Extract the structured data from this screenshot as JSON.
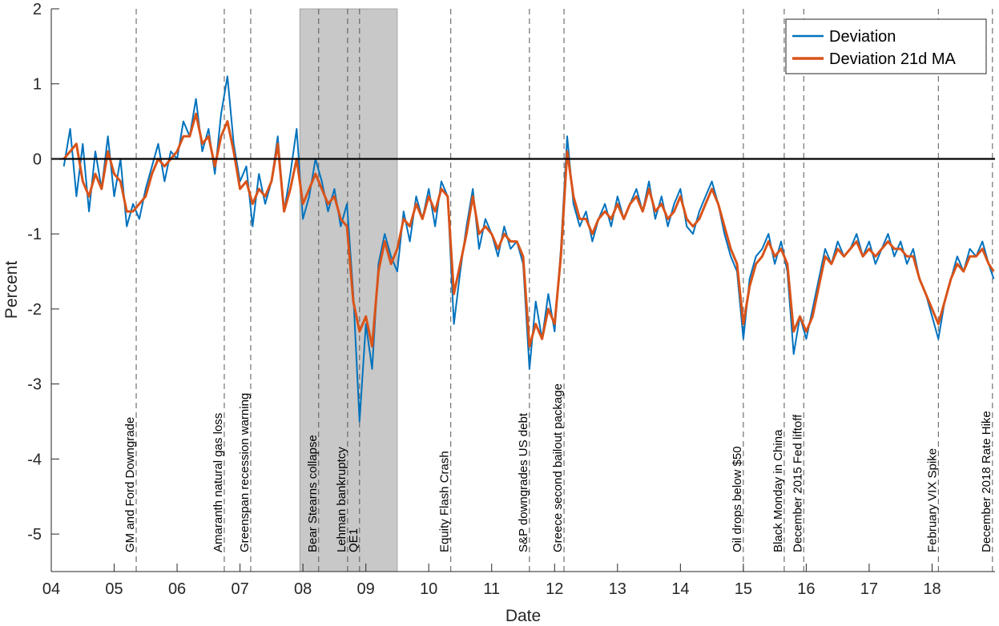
{
  "chart_data": {
    "type": "line",
    "title": "",
    "xlabel": "Date",
    "ylabel": "Percent",
    "xlim": [
      2004.0,
      2019.0
    ],
    "ylim": [
      -5.5,
      2
    ],
    "x_ticks": [
      2004,
      2005,
      2006,
      2007,
      2008,
      2009,
      2010,
      2011,
      2012,
      2013,
      2014,
      2015,
      2016,
      2017,
      2018
    ],
    "x_tick_labels": [
      "04",
      "05",
      "06",
      "07",
      "08",
      "09",
      "10",
      "11",
      "12",
      "13",
      "14",
      "15",
      "16",
      "17",
      "18"
    ],
    "y_ticks": [
      2,
      1,
      0,
      -1,
      -2,
      -3,
      -4,
      -5
    ],
    "y_tick_labels": [
      "2",
      "1",
      "0",
      "-1",
      "-2",
      "-3",
      "-4",
      "-5"
    ],
    "reference_line": 0,
    "shaded_period": [
      2007.95,
      2009.5
    ],
    "legend_position": "top-right",
    "colors": {
      "deviation": "#0072BD",
      "ma": "#D95319",
      "zero_line": "#000000",
      "shade": "#C8C8C8"
    },
    "events": [
      {
        "x": 2005.35,
        "label": "GM and Ford Downgrade"
      },
      {
        "x": 2006.75,
        "label": "Amaranth natural gas loss"
      },
      {
        "x": 2007.17,
        "label": "Greenspan recession warning"
      },
      {
        "x": 2008.25,
        "label": "Bear Stearns collapse"
      },
      {
        "x": 2008.71,
        "label": "Lehman bankruptcy"
      },
      {
        "x": 2008.9,
        "label": "QE1"
      },
      {
        "x": 2010.35,
        "label": "Equity Flash Crash"
      },
      {
        "x": 2011.6,
        "label": "S&P downgrades US debt"
      },
      {
        "x": 2012.15,
        "label": "Greece second bailout package"
      },
      {
        "x": 2015.0,
        "label": "Oil drops below $50"
      },
      {
        "x": 2015.65,
        "label": "Black Monday in China"
      },
      {
        "x": 2015.96,
        "label": "December 2015 Fed liftoff"
      },
      {
        "x": 2018.1,
        "label": "February VIX Spike"
      },
      {
        "x": 2018.96,
        "label": "December 2018 Rate Hike"
      }
    ],
    "series": [
      {
        "name": "Deviation",
        "x": [
          2004.2,
          2004.3,
          2004.4,
          2004.5,
          2004.6,
          2004.7,
          2004.8,
          2004.9,
          2005.0,
          2005.1,
          2005.2,
          2005.3,
          2005.4,
          2005.5,
          2005.6,
          2005.7,
          2005.8,
          2005.9,
          2006.0,
          2006.1,
          2006.2,
          2006.3,
          2006.4,
          2006.5,
          2006.6,
          2006.7,
          2006.8,
          2006.9,
          2007.0,
          2007.1,
          2007.2,
          2007.3,
          2007.4,
          2007.5,
          2007.6,
          2007.7,
          2007.8,
          2007.9,
          2008.0,
          2008.1,
          2008.2,
          2008.3,
          2008.4,
          2008.5,
          2008.6,
          2008.7,
          2008.8,
          2008.9,
          2009.0,
          2009.1,
          2009.2,
          2009.3,
          2009.4,
          2009.5,
          2009.6,
          2009.7,
          2009.8,
          2009.9,
          2010.0,
          2010.1,
          2010.2,
          2010.3,
          2010.4,
          2010.5,
          2010.6,
          2010.7,
          2010.8,
          2010.9,
          2011.0,
          2011.1,
          2011.2,
          2011.3,
          2011.4,
          2011.5,
          2011.6,
          2011.7,
          2011.8,
          2011.9,
          2012.0,
          2012.1,
          2012.2,
          2012.3,
          2012.4,
          2012.5,
          2012.6,
          2012.7,
          2012.8,
          2012.9,
          2013.0,
          2013.1,
          2013.2,
          2013.3,
          2013.4,
          2013.5,
          2013.6,
          2013.7,
          2013.8,
          2013.9,
          2014.0,
          2014.1,
          2014.2,
          2014.3,
          2014.4,
          2014.5,
          2014.6,
          2014.7,
          2014.8,
          2014.9,
          2015.0,
          2015.1,
          2015.2,
          2015.3,
          2015.4,
          2015.5,
          2015.6,
          2015.7,
          2015.8,
          2015.9,
          2016.0,
          2016.1,
          2016.2,
          2016.3,
          2016.4,
          2016.5,
          2016.6,
          2016.7,
          2016.8,
          2016.9,
          2017.0,
          2017.1,
          2017.2,
          2017.3,
          2017.4,
          2017.5,
          2017.6,
          2017.7,
          2017.8,
          2017.9,
          2018.0,
          2018.1,
          2018.2,
          2018.3,
          2018.4,
          2018.5,
          2018.6,
          2018.7,
          2018.8,
          2018.9,
          2018.98
        ],
        "y": [
          -0.1,
          0.4,
          -0.5,
          0.2,
          -0.7,
          0.1,
          -0.4,
          0.3,
          -0.5,
          0.0,
          -0.9,
          -0.6,
          -0.8,
          -0.4,
          -0.1,
          0.2,
          -0.3,
          0.1,
          0.0,
          0.5,
          0.3,
          0.8,
          0.1,
          0.4,
          -0.2,
          0.6,
          1.1,
          0.2,
          -0.3,
          -0.1,
          -0.9,
          -0.2,
          -0.6,
          -0.3,
          0.3,
          -0.7,
          -0.2,
          0.4,
          -0.8,
          -0.5,
          0.0,
          -0.3,
          -0.7,
          -0.4,
          -0.9,
          -0.6,
          -1.8,
          -3.5,
          -2.2,
          -2.8,
          -1.4,
          -1.0,
          -1.3,
          -1.5,
          -0.7,
          -1.1,
          -0.5,
          -0.8,
          -0.4,
          -0.9,
          -0.3,
          -0.5,
          -2.2,
          -1.5,
          -0.9,
          -0.4,
          -1.2,
          -0.8,
          -1.0,
          -1.3,
          -0.9,
          -1.2,
          -1.1,
          -1.4,
          -2.8,
          -1.9,
          -2.4,
          -1.8,
          -2.3,
          -1.2,
          0.3,
          -0.6,
          -0.9,
          -0.7,
          -1.1,
          -0.8,
          -0.6,
          -0.9,
          -0.5,
          -0.8,
          -0.6,
          -0.4,
          -0.7,
          -0.3,
          -0.8,
          -0.5,
          -0.9,
          -0.6,
          -0.4,
          -0.9,
          -1.0,
          -0.7,
          -0.5,
          -0.3,
          -0.6,
          -1.0,
          -1.3,
          -1.5,
          -2.4,
          -1.6,
          -1.3,
          -1.2,
          -1.0,
          -1.4,
          -1.1,
          -1.5,
          -2.6,
          -2.1,
          -2.4,
          -2.0,
          -1.6,
          -1.2,
          -1.4,
          -1.1,
          -1.3,
          -1.2,
          -1.0,
          -1.3,
          -1.1,
          -1.4,
          -1.2,
          -1.0,
          -1.3,
          -1.1,
          -1.4,
          -1.2,
          -1.6,
          -1.8,
          -2.1,
          -2.4,
          -1.9,
          -1.6,
          -1.3,
          -1.5,
          -1.2,
          -1.3,
          -1.1,
          -1.4,
          -1.6
        ]
      },
      {
        "name": "Deviation 21d MA",
        "x": [
          2004.2,
          2004.3,
          2004.4,
          2004.5,
          2004.6,
          2004.7,
          2004.8,
          2004.9,
          2005.0,
          2005.1,
          2005.2,
          2005.3,
          2005.4,
          2005.5,
          2005.6,
          2005.7,
          2005.8,
          2005.9,
          2006.0,
          2006.1,
          2006.2,
          2006.3,
          2006.4,
          2006.5,
          2006.6,
          2006.7,
          2006.8,
          2006.9,
          2007.0,
          2007.1,
          2007.2,
          2007.3,
          2007.4,
          2007.5,
          2007.6,
          2007.7,
          2007.8,
          2007.9,
          2008.0,
          2008.1,
          2008.2,
          2008.3,
          2008.4,
          2008.5,
          2008.6,
          2008.7,
          2008.8,
          2008.9,
          2009.0,
          2009.1,
          2009.2,
          2009.3,
          2009.4,
          2009.5,
          2009.6,
          2009.7,
          2009.8,
          2009.9,
          2010.0,
          2010.1,
          2010.2,
          2010.3,
          2010.4,
          2010.5,
          2010.6,
          2010.7,
          2010.8,
          2010.9,
          2011.0,
          2011.1,
          2011.2,
          2011.3,
          2011.4,
          2011.5,
          2011.6,
          2011.7,
          2011.8,
          2011.9,
          2012.0,
          2012.1,
          2012.2,
          2012.3,
          2012.4,
          2012.5,
          2012.6,
          2012.7,
          2012.8,
          2012.9,
          2013.0,
          2013.1,
          2013.2,
          2013.3,
          2013.4,
          2013.5,
          2013.6,
          2013.7,
          2013.8,
          2013.9,
          2014.0,
          2014.1,
          2014.2,
          2014.3,
          2014.4,
          2014.5,
          2014.6,
          2014.7,
          2014.8,
          2014.9,
          2015.0,
          2015.1,
          2015.2,
          2015.3,
          2015.4,
          2015.5,
          2015.6,
          2015.7,
          2015.8,
          2015.9,
          2016.0,
          2016.1,
          2016.2,
          2016.3,
          2016.4,
          2016.5,
          2016.6,
          2016.7,
          2016.8,
          2016.9,
          2017.0,
          2017.1,
          2017.2,
          2017.3,
          2017.4,
          2017.5,
          2017.6,
          2017.7,
          2017.8,
          2017.9,
          2018.0,
          2018.1,
          2018.2,
          2018.3,
          2018.4,
          2018.5,
          2018.6,
          2018.7,
          2018.8,
          2018.9,
          2018.98
        ],
        "y": [
          0.0,
          0.1,
          0.2,
          -0.3,
          -0.5,
          -0.2,
          -0.4,
          0.1,
          -0.2,
          -0.3,
          -0.7,
          -0.7,
          -0.6,
          -0.5,
          -0.2,
          0.0,
          -0.1,
          0.0,
          0.1,
          0.3,
          0.3,
          0.6,
          0.2,
          0.3,
          -0.1,
          0.3,
          0.5,
          0.1,
          -0.4,
          -0.3,
          -0.6,
          -0.4,
          -0.5,
          -0.3,
          0.2,
          -0.7,
          -0.4,
          0.0,
          -0.6,
          -0.4,
          -0.2,
          -0.4,
          -0.6,
          -0.5,
          -0.8,
          -0.9,
          -1.9,
          -2.3,
          -2.1,
          -2.5,
          -1.5,
          -1.1,
          -1.4,
          -1.2,
          -0.8,
          -0.9,
          -0.6,
          -0.8,
          -0.5,
          -0.7,
          -0.4,
          -0.5,
          -1.8,
          -1.4,
          -1.0,
          -0.5,
          -1.0,
          -0.9,
          -1.0,
          -1.2,
          -1.0,
          -1.1,
          -1.1,
          -1.3,
          -2.5,
          -2.2,
          -2.4,
          -2.0,
          -2.2,
          -1.3,
          0.1,
          -0.5,
          -0.8,
          -0.8,
          -1.0,
          -0.8,
          -0.7,
          -0.8,
          -0.6,
          -0.8,
          -0.6,
          -0.5,
          -0.7,
          -0.4,
          -0.7,
          -0.6,
          -0.8,
          -0.7,
          -0.5,
          -0.8,
          -0.9,
          -0.8,
          -0.6,
          -0.4,
          -0.6,
          -0.9,
          -1.2,
          -1.4,
          -2.2,
          -1.7,
          -1.4,
          -1.3,
          -1.1,
          -1.3,
          -1.2,
          -1.4,
          -2.3,
          -2.1,
          -2.3,
          -2.1,
          -1.7,
          -1.3,
          -1.4,
          -1.2,
          -1.3,
          -1.2,
          -1.1,
          -1.3,
          -1.2,
          -1.3,
          -1.2,
          -1.1,
          -1.2,
          -1.2,
          -1.3,
          -1.3,
          -1.6,
          -1.8,
          -2.0,
          -2.2,
          -1.9,
          -1.6,
          -1.4,
          -1.5,
          -1.3,
          -1.3,
          -1.2,
          -1.4,
          -1.5
        ]
      }
    ]
  }
}
